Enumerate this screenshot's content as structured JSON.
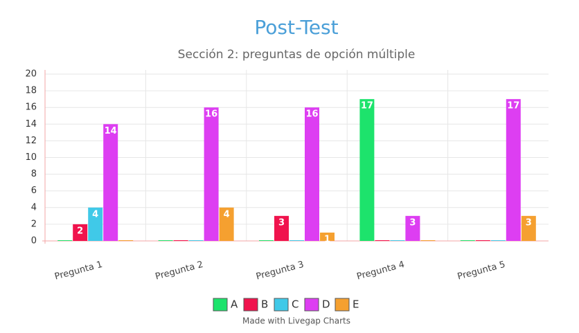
{
  "chart_data": {
    "type": "bar",
    "title": "Post-Test",
    "subtitle": "Sección 2: preguntas de opción múltiple",
    "categories": [
      "Pregunta 1",
      "Pregunta 2",
      "Pregunta 3",
      "Pregunta 4",
      "Pregunta 5"
    ],
    "series": [
      {
        "name": "A",
        "color": "#1de36c",
        "values": [
          0,
          0,
          0,
          17,
          0
        ]
      },
      {
        "name": "B",
        "color": "#f0134d",
        "values": [
          2,
          0,
          3,
          0,
          0
        ]
      },
      {
        "name": "C",
        "color": "#40c9e8",
        "values": [
          4,
          0,
          0,
          0,
          0
        ]
      },
      {
        "name": "D",
        "color": "#dd3ef2",
        "values": [
          14,
          16,
          16,
          3,
          17
        ]
      },
      {
        "name": "E",
        "color": "#f5a030",
        "values": [
          0,
          4,
          1,
          0,
          3
        ]
      }
    ],
    "ylim": [
      0,
      20
    ],
    "yticks": [
      0,
      2,
      4,
      6,
      8,
      10,
      12,
      14,
      16,
      18,
      20
    ],
    "grid": true,
    "legend": "bottom",
    "credit": "Made with Livegap Charts"
  }
}
